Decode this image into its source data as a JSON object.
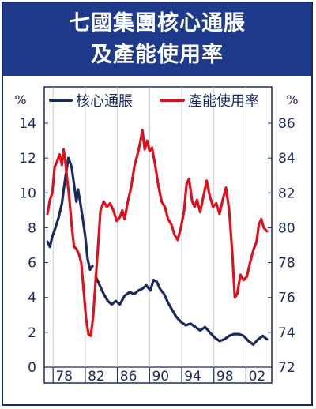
{
  "title": [
    "七國集團核心通脹",
    "及產能使用率"
  ],
  "chart_data": {
    "type": "line",
    "x_ticks": [
      "78",
      "82",
      "86",
      "90",
      "94",
      "98",
      "02"
    ],
    "left_axis": {
      "unit": "%",
      "ticks": [
        0,
        2,
        4,
        6,
        8,
        10,
        12,
        14
      ],
      "ylim": [
        0,
        14
      ]
    },
    "right_axis": {
      "unit": "%",
      "ticks": [
        72,
        74,
        76,
        78,
        80,
        82,
        84,
        86
      ],
      "ylim": [
        72,
        86
      ]
    },
    "legend": {
      "placement": "top"
    },
    "series": [
      {
        "name": "核心通脹",
        "axis": "left",
        "color": "#1a2a5c",
        "points": [
          [
            1977.0,
            7.2
          ],
          [
            1977.3,
            6.9
          ],
          [
            1977.6,
            7.5
          ],
          [
            1978.0,
            8.0
          ],
          [
            1978.4,
            8.6
          ],
          [
            1978.8,
            9.4
          ],
          [
            1979.2,
            10.8
          ],
          [
            1979.6,
            12.0
          ],
          [
            1980.0,
            11.5
          ],
          [
            1980.3,
            10.5
          ],
          [
            1980.6,
            9.5
          ],
          [
            1980.8,
            10.2
          ],
          [
            1981.1,
            9.4
          ],
          [
            1981.4,
            8.5
          ],
          [
            1981.7,
            7.5
          ],
          [
            1982.0,
            6.2
          ],
          [
            1982.3,
            5.6
          ],
          [
            1982.6,
            5.8
          ],
          null,
          [
            1983.0,
            5.2
          ],
          [
            1983.3,
            4.9
          ],
          [
            1983.6,
            4.6
          ],
          [
            1984.0,
            4.2
          ],
          [
            1984.5,
            3.8
          ],
          [
            1985.0,
            3.6
          ],
          [
            1985.5,
            3.8
          ],
          [
            1986.0,
            3.6
          ],
          [
            1986.6,
            4.1
          ],
          [
            1987.2,
            4.3
          ],
          [
            1987.8,
            4.2
          ],
          [
            1988.3,
            4.4
          ],
          [
            1988.8,
            4.5
          ],
          [
            1989.3,
            4.7
          ],
          [
            1989.8,
            4.4
          ],
          [
            1990.2,
            5.0
          ],
          [
            1990.6,
            4.9
          ],
          [
            1991.0,
            4.5
          ],
          [
            1991.5,
            4.2
          ],
          [
            1992.0,
            3.7
          ],
          [
            1992.5,
            3.3
          ],
          [
            1993.0,
            2.9
          ],
          [
            1993.6,
            2.6
          ],
          [
            1994.2,
            2.4
          ],
          [
            1994.8,
            2.5
          ],
          [
            1995.4,
            2.3
          ],
          [
            1996.0,
            2.1
          ],
          [
            1996.6,
            2.3
          ],
          [
            1997.2,
            2.0
          ],
          [
            1997.8,
            1.7
          ],
          [
            1998.4,
            1.5
          ],
          [
            1999.0,
            1.6
          ],
          [
            1999.6,
            1.8
          ],
          [
            2000.2,
            1.9
          ],
          [
            2000.8,
            1.9
          ],
          [
            2001.4,
            1.8
          ],
          [
            2002.0,
            1.5
          ],
          [
            2002.6,
            1.3
          ],
          [
            2003.2,
            1.6
          ],
          [
            2003.8,
            1.8
          ],
          [
            2004.3,
            1.6
          ]
        ]
      },
      {
        "name": "產能使用率",
        "axis": "right",
        "color": "#d9121e",
        "points": [
          [
            1977.0,
            80.8
          ],
          [
            1977.3,
            81.6
          ],
          [
            1977.6,
            82.0
          ],
          [
            1977.9,
            83.5
          ],
          [
            1978.2,
            83.8
          ],
          [
            1978.5,
            84.2
          ],
          [
            1978.8,
            83.6
          ],
          [
            1979.0,
            84.5
          ],
          [
            1979.2,
            83.9
          ],
          [
            1979.4,
            83.0
          ],
          [
            1979.7,
            81.8
          ],
          [
            1980.0,
            80.2
          ],
          [
            1980.3,
            78.9
          ],
          [
            1980.6,
            78.8
          ],
          [
            1980.9,
            78.5
          ],
          [
            1981.2,
            78.0
          ],
          [
            1981.5,
            76.4
          ],
          [
            1981.8,
            74.8
          ],
          [
            1982.1,
            73.9
          ],
          [
            1982.4,
            73.8
          ],
          [
            1982.7,
            75.0
          ],
          [
            1983.0,
            77.0
          ],
          [
            1983.3,
            79.0
          ],
          [
            1983.6,
            81.0
          ],
          [
            1984.0,
            81.5
          ],
          [
            1984.4,
            81.2
          ],
          [
            1984.8,
            81.4
          ],
          [
            1985.2,
            81.0
          ],
          [
            1985.6,
            80.4
          ],
          [
            1986.0,
            80.6
          ],
          [
            1986.3,
            81.0
          ],
          [
            1986.6,
            80.5
          ],
          [
            1987.0,
            81.5
          ],
          [
            1987.4,
            82.3
          ],
          [
            1987.8,
            83.5
          ],
          [
            1988.2,
            84.2
          ],
          [
            1988.5,
            84.8
          ],
          [
            1988.8,
            85.6
          ],
          [
            1989.1,
            84.5
          ],
          [
            1989.4,
            85.0
          ],
          [
            1989.7,
            84.4
          ],
          [
            1990.0,
            84.6
          ],
          [
            1990.4,
            83.6
          ],
          [
            1990.8,
            82.4
          ],
          [
            1991.2,
            81.5
          ],
          [
            1991.6,
            81.2
          ],
          [
            1992.0,
            80.5
          ],
          [
            1992.4,
            80.2
          ],
          [
            1992.8,
            79.6
          ],
          [
            1993.2,
            79.3
          ],
          [
            1993.6,
            80.0
          ],
          [
            1994.0,
            81.0
          ],
          [
            1994.3,
            82.5
          ],
          [
            1994.6,
            82.8
          ],
          [
            1995.0,
            81.5
          ],
          [
            1995.3,
            81.2
          ],
          [
            1995.6,
            81.6
          ],
          [
            1996.0,
            80.9
          ],
          [
            1996.4,
            81.8
          ],
          [
            1996.8,
            82.7
          ],
          [
            1997.2,
            81.8
          ],
          [
            1997.6,
            81.2
          ],
          [
            1998.0,
            81.4
          ],
          [
            1998.4,
            80.8
          ],
          [
            1998.8,
            81.6
          ],
          [
            1999.2,
            82.3
          ],
          [
            1999.6,
            81.0
          ],
          [
            2000.0,
            78.5
          ],
          [
            2000.3,
            76.0
          ],
          [
            2000.6,
            76.2
          ],
          [
            2001.0,
            77.3
          ],
          [
            2001.4,
            77.0
          ],
          [
            2001.8,
            77.2
          ],
          [
            2002.2,
            78.0
          ],
          [
            2002.6,
            78.7
          ],
          [
            2003.0,
            79.2
          ],
          [
            2003.3,
            80.2
          ],
          [
            2003.6,
            80.5
          ],
          [
            2003.9,
            80.0
          ],
          [
            2004.3,
            79.8
          ]
        ]
      }
    ]
  }
}
